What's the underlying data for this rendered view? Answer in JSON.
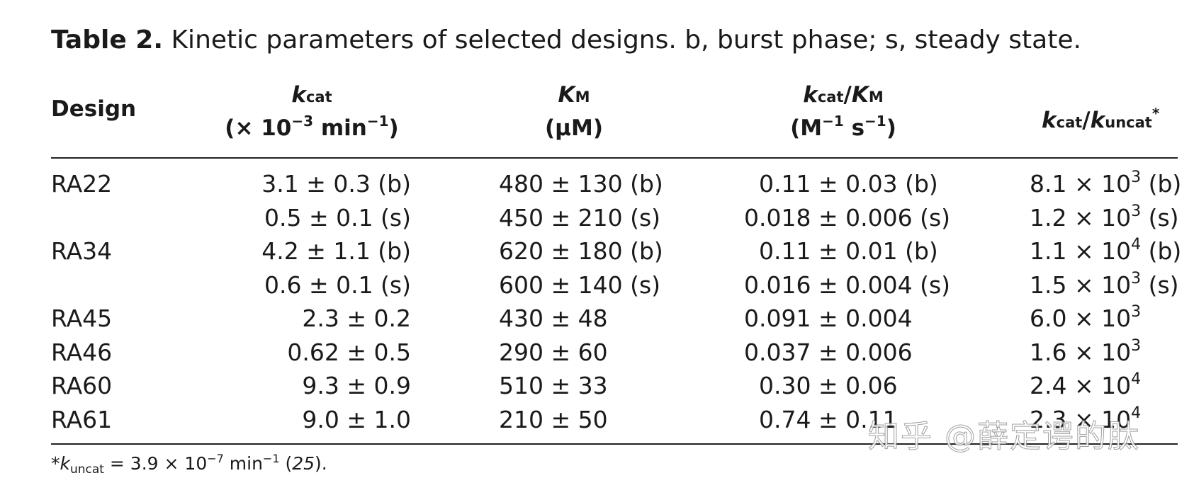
{
  "caption": {
    "label": "Table 2.",
    "text": "Kinetic parameters of selected designs. b, burst phase; s, steady state."
  },
  "headers": {
    "design": "Design",
    "kcat": {
      "sym": "k",
      "sub": "cat",
      "unit_pre": "(× 10",
      "exp1": "−3",
      "unit_mid": " min",
      "exp2": "−1",
      "unit_post": ")"
    },
    "km": {
      "sym": "K",
      "sub": "M",
      "unit": "(μM)"
    },
    "ratio": {
      "sym1": "k",
      "sub1": "cat",
      "slash": "/",
      "sym2": "K",
      "sub2": "M",
      "unit_pre": "(M",
      "exp1": "−1",
      "unit_mid": " s",
      "exp2": "−1",
      "unit_post": ")"
    },
    "rel": {
      "sym1": "k",
      "sub1": "cat",
      "slash": "/",
      "sym2": "k",
      "sub2": "uncat",
      "star": "*"
    }
  },
  "rows": [
    {
      "design": "RA22",
      "kcat": "3.1 ± 0.3 (b)",
      "km": "480 ± 130 (b)",
      "ratio": "0.11 ± 0.03 (b)",
      "ratio_pad": true,
      "rel_base": "8.1 × 10",
      "rel_exp": "3",
      "rel_note": " (b)"
    },
    {
      "design": "",
      "kcat": "0.5 ± 0.1 (s)",
      "km": "450 ± 210 (s)",
      "ratio": "0.018 ± 0.006 (s)",
      "ratio_pad": false,
      "rel_base": "1.2 × 10",
      "rel_exp": "3",
      "rel_note": " (s)"
    },
    {
      "design": "RA34",
      "kcat": "4.2 ± 1.1 (b)",
      "km": "620 ± 180 (b)",
      "ratio": "0.11 ± 0.01 (b)",
      "ratio_pad": true,
      "rel_base": "1.1 × 10",
      "rel_exp": "4",
      "rel_note": " (b)"
    },
    {
      "design": "",
      "kcat": "0.6 ± 0.1 (s)",
      "km": "600 ± 140 (s)",
      "ratio": "0.016 ± 0.004 (s)",
      "ratio_pad": false,
      "rel_base": "1.5 × 10",
      "rel_exp": "3",
      "rel_note": " (s)"
    },
    {
      "design": "RA45",
      "kcat": "2.3 ± 0.2",
      "km": "430 ± 48",
      "ratio": "0.091 ± 0.004",
      "ratio_pad": false,
      "rel_base": "6.0 × 10",
      "rel_exp": "3",
      "rel_note": ""
    },
    {
      "design": "RA46",
      "kcat": "0.62 ± 0.5",
      "km": "290 ± 60",
      "ratio": "0.037 ± 0.006",
      "ratio_pad": false,
      "rel_base": "1.6 × 10",
      "rel_exp": "3",
      "rel_note": ""
    },
    {
      "design": "RA60",
      "kcat": "9.3 ± 0.9",
      "km": "510 ± 33",
      "ratio": "0.30 ± 0.06",
      "ratio_pad": true,
      "rel_base": "2.4 × 10",
      "rel_exp": "4",
      "rel_note": ""
    },
    {
      "design": "RA61",
      "kcat": "9.0 ± 1.0",
      "km": "210 ± 50",
      "ratio": "0.74 ± 0.11",
      "ratio_pad": true,
      "rel_base": "2.3 × 10",
      "rel_exp": "4",
      "rel_note": ""
    }
  ],
  "footnote": {
    "star": "*",
    "sym": "k",
    "sub": "uncat",
    "eq": " = 3.9 × 10",
    "exp1": "−7",
    "unit": " min",
    "exp2": "−1",
    "ref_open": " (",
    "ref": "25",
    "ref_close": ")."
  },
  "watermark": "知乎 @薛定谔的肽"
}
